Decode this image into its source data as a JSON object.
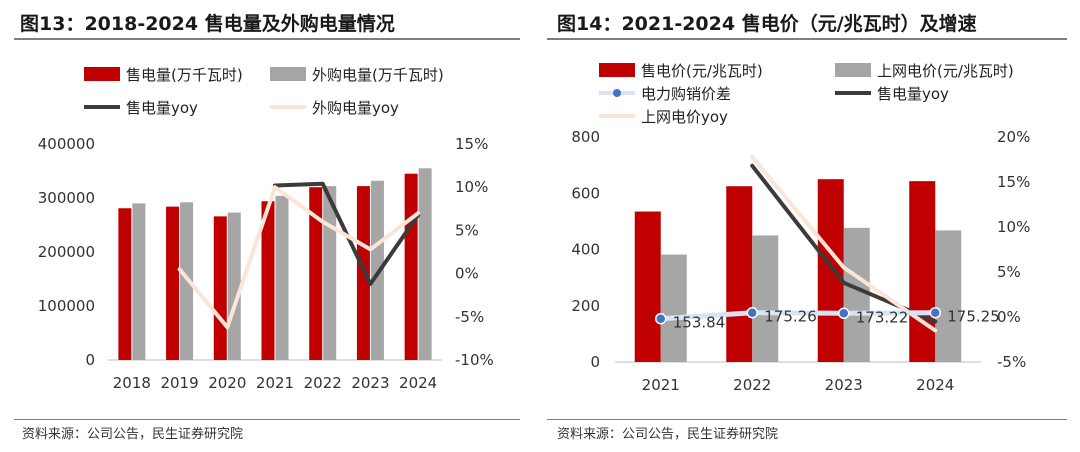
{
  "left": {
    "title": "图13：2018-2024 售电量及外购电量情况",
    "source": "资料来源：公司公告，民生证券研究院"
  },
  "right": {
    "title": "图14：2021-2024 售电价（元/兆瓦时）及增速",
    "source": "资料来源：公司公告，民生证券研究院"
  },
  "colors": {
    "red": "#c00000",
    "gray": "#a6a6a6",
    "dark": "#3b3b3b",
    "peach": "#fbe5d6",
    "spread": "#4472c4",
    "spread_line": "#dae3f3"
  },
  "chart_data": [
    {
      "type": "bar",
      "categories": [
        "2018",
        "2019",
        "2020",
        "2021",
        "2022",
        "2023",
        "2024"
      ],
      "series": [
        {
          "name": "售电量(万千瓦时)",
          "kind": "bar",
          "axis": "left",
          "color": "#c00000",
          "values": [
            281000,
            284000,
            266000,
            294000,
            320000,
            322000,
            345000
          ]
        },
        {
          "name": "外购电量(万千瓦时)",
          "kind": "bar",
          "axis": "left",
          "color": "#a6a6a6",
          "values": [
            290000,
            292000,
            273000,
            304000,
            322000,
            332000,
            355000
          ]
        },
        {
          "name": "售电量yoy",
          "kind": "line",
          "axis": "right",
          "color": "#3b3b3b",
          "values": [
            null,
            null,
            null,
            10.2,
            10.4,
            -1.2,
            6.8
          ]
        },
        {
          "name": "外购电量yoy",
          "kind": "line",
          "axis": "right",
          "color": "#fbe5d6",
          "values": [
            null,
            0.5,
            -6.2,
            10.0,
            6.0,
            2.8,
            7.0
          ]
        }
      ],
      "ylim_left": [
        0,
        400000
      ],
      "yticks_left": [
        "0",
        "100000",
        "200000",
        "300000",
        "400000"
      ],
      "ylim_right": [
        -10,
        15
      ],
      "yticks_right": [
        "-10%",
        "-5%",
        "0%",
        "5%",
        "10%",
        "15%"
      ],
      "legend": [
        "售电量(万千瓦时)",
        "外购电量(万千瓦时)",
        "售电量yoy",
        "外购电量yoy"
      ]
    },
    {
      "type": "bar",
      "categories": [
        "2021",
        "2022",
        "2023",
        "2024"
      ],
      "series": [
        {
          "name": "售电价(元/兆瓦时)",
          "kind": "bar",
          "axis": "left",
          "color": "#c00000",
          "values": [
            535,
            625,
            650,
            643
          ]
        },
        {
          "name": "上网电价(元/兆瓦时)",
          "kind": "bar",
          "axis": "left",
          "color": "#a6a6a6",
          "values": [
            382,
            450,
            477,
            468
          ]
        },
        {
          "name": "电力购销价差",
          "kind": "line-marker",
          "axis": "left",
          "color": "#4472c4",
          "values": [
            153.84,
            175.26,
            173.22,
            175.25
          ],
          "labels": [
            "153.84",
            "175.26",
            "173.22",
            "175.25"
          ]
        },
        {
          "name": "售电量yoy",
          "kind": "line",
          "axis": "right",
          "color": "#3b3b3b",
          "values": [
            null,
            16.8,
            3.8,
            -0.5
          ]
        },
        {
          "name": "上网电价yoy",
          "kind": "line",
          "axis": "right",
          "color": "#fbe5d6",
          "values": [
            null,
            17.8,
            5.5,
            -1.5
          ]
        }
      ],
      "ylim_left": [
        0,
        800
      ],
      "yticks_left": [
        "0",
        "200",
        "400",
        "600",
        "800"
      ],
      "ylim_right": [
        -5,
        20
      ],
      "yticks_right": [
        "-5%",
        "0%",
        "5%",
        "10%",
        "15%",
        "20%"
      ],
      "legend": [
        "售电价(元/兆瓦时)",
        "上网电价(元/兆瓦时)",
        "电力购销价差",
        "售电量yoy",
        "上网电价yoy"
      ]
    }
  ]
}
